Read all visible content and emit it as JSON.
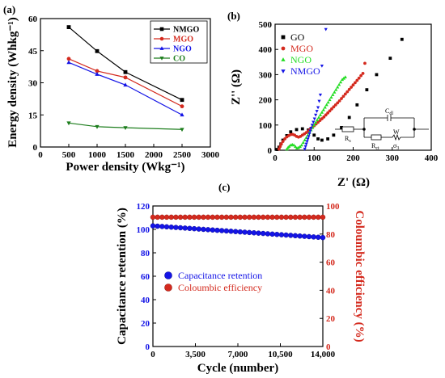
{
  "panel_labels": [
    "(a)",
    "(b)",
    "(c)"
  ],
  "chart_data": [
    {
      "id": "a",
      "type": "line",
      "xlabel": "Power density (Wkg⁻¹)",
      "ylabel": "Energy density (Whkg⁻¹)",
      "xlim": [
        0,
        3000
      ],
      "ylim": [
        0,
        60
      ],
      "xticks": [
        "0",
        "500",
        "1000",
        "1500",
        "2000",
        "2500",
        "3000"
      ],
      "yticks": [
        "0",
        "15",
        "30",
        "45",
        "60"
      ],
      "legend_position": "top-right",
      "series": [
        {
          "name": "NMGO",
          "color": "#000000",
          "marker": "square",
          "x": [
            500,
            1000,
            1500,
            2500
          ],
          "y": [
            56,
            44.8,
            35,
            22
          ]
        },
        {
          "name": "MGO",
          "color": "#d42a1e",
          "marker": "circle",
          "x": [
            500,
            1000,
            1500,
            2500
          ],
          "y": [
            41.2,
            35.5,
            32.5,
            19
          ]
        },
        {
          "name": "NGO",
          "color": "#1414e6",
          "marker": "triangle-up",
          "x": [
            500,
            1000,
            1500,
            2500
          ],
          "y": [
            39.5,
            34,
            29,
            15
          ]
        },
        {
          "name": "CO",
          "color": "#1c7d1c",
          "marker": "triangle-down",
          "x": [
            500,
            1000,
            1500,
            2500
          ],
          "y": [
            11.2,
            9.5,
            9,
            8.2
          ]
        }
      ]
    },
    {
      "id": "b",
      "type": "scatter",
      "xlabel": "Z' (Ω)",
      "ylabel": "Z'' (Ω)",
      "xlim": [
        0,
        400
      ],
      "ylim": [
        0,
        500
      ],
      "xticks": [
        "0",
        "100",
        "200",
        "300",
        "400"
      ],
      "yticks": [
        "0",
        "100",
        "200",
        "300",
        "400",
        "500"
      ],
      "legend_position": "top-left",
      "inset_labels": {
        "rs": "R",
        "rs_sub": "s",
        "cdl": "C",
        "cdl_sub": "dl",
        "rct": "R",
        "rct_sub": "ct",
        "w": "W",
        "sigma": "σ",
        "sigma_sub": "3"
      },
      "series": [
        {
          "name": "GO",
          "color": "#000000",
          "marker": "square",
          "x": [
            5,
            10,
            15,
            20,
            30,
            40,
            55,
            70,
            85,
            100,
            110,
            120,
            135,
            150,
            170,
            190,
            210,
            235,
            260,
            295,
            325
          ],
          "y": [
            3,
            12,
            25,
            40,
            58,
            73,
            82,
            85,
            80,
            60,
            45,
            40,
            45,
            60,
            90,
            130,
            180,
            240,
            300,
            365,
            440
          ]
        },
        {
          "name": "MGO",
          "color": "#d42a1e",
          "marker": "circle",
          "x": [
            10,
            13,
            16,
            20,
            25,
            30,
            35,
            40,
            45,
            50,
            55,
            60,
            65,
            70,
            75,
            80,
            85,
            90,
            95,
            100,
            105,
            110,
            115,
            120,
            125,
            130,
            135,
            140,
            145,
            150,
            155,
            160,
            165,
            170,
            175,
            180,
            185,
            190,
            195,
            200,
            205,
            210,
            215,
            220,
            225,
            230
          ],
          "y": [
            5,
            15,
            25,
            35,
            45,
            53,
            58,
            62,
            63,
            60,
            55,
            52,
            55,
            60,
            65,
            70,
            77,
            84,
            90,
            97,
            104,
            111,
            118,
            125,
            132,
            140,
            148,
            156,
            164,
            172,
            180,
            188,
            196,
            205,
            214,
            223,
            232,
            241,
            250,
            259,
            268,
            277,
            286,
            296,
            305,
            345
          ]
        },
        {
          "name": "NGO",
          "color": "#22dd22",
          "marker": "triangle-up",
          "x": [
            30,
            33,
            36,
            40,
            44,
            48,
            52,
            56,
            60,
            64,
            68,
            72,
            76,
            80,
            84,
            88,
            92,
            96,
            100,
            104,
            108,
            112,
            116,
            120,
            124,
            128,
            132,
            136,
            140,
            144,
            148,
            152,
            156,
            160,
            164,
            168,
            172,
            176,
            180
          ],
          "y": [
            4,
            10,
            15,
            20,
            22,
            20,
            14,
            8,
            10,
            14,
            20,
            30,
            40,
            50,
            60,
            70,
            80,
            90,
            100,
            110,
            120,
            130,
            140,
            150,
            160,
            170,
            180,
            190,
            200,
            210,
            220,
            230,
            240,
            250,
            260,
            270,
            280,
            285,
            290
          ]
        },
        {
          "name": "NMGO",
          "color": "#1414e6",
          "marker": "triangle-down",
          "x": [
            76,
            78,
            80,
            82,
            84,
            86,
            88,
            90,
            92,
            95,
            98,
            101,
            104,
            107,
            110,
            113,
            116,
            120,
            130
          ],
          "y": [
            5,
            15,
            25,
            35,
            45,
            55,
            66,
            77,
            88,
            100,
            112,
            125,
            140,
            155,
            170,
            195,
            220,
            335,
            480
          ]
        }
      ]
    },
    {
      "id": "c",
      "type": "scatter",
      "xlabel": "Cycle (number)",
      "ylabel": "Capacitance retention (%)",
      "y2label": "Coloumbic efficiency (%)",
      "xlim": [
        0,
        14000
      ],
      "ylim": [
        0,
        120
      ],
      "y2lim": [
        0,
        100
      ],
      "xticks": [
        "0",
        "3,500",
        "7,000",
        "10,500",
        "14,000"
      ],
      "yticks": [
        "0",
        "20",
        "40",
        "60",
        "80",
        "100",
        "120"
      ],
      "y2ticks": [
        "0",
        "20",
        "40",
        "60",
        "80",
        "100"
      ],
      "legend_position": "center-left",
      "series": [
        {
          "name": "Capacitance retention",
          "color": "#1414e6",
          "marker": "circle",
          "axis": "left",
          "x_start": 0,
          "x_end": 14000,
          "y_start": 103,
          "y_end": 93
        },
        {
          "name": "Coloumbic efficiency",
          "color": "#d42a1e",
          "marker": "circle",
          "axis": "right",
          "x_start": 0,
          "x_end": 14000,
          "y_start": 92,
          "y_end": 92
        }
      ]
    }
  ]
}
